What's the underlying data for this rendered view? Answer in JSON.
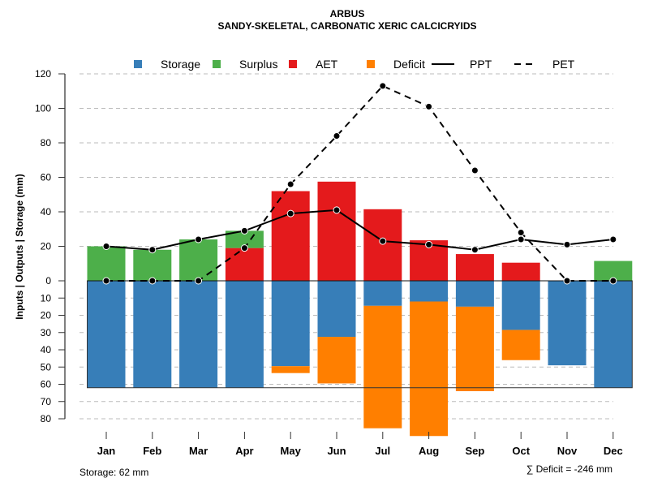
{
  "chart_data": {
    "type": "bar",
    "title": "ARBUS",
    "subtitle": "SANDY-SKELETAL, CARBONATIC XERIC CALCICRYIDS",
    "ylabel": "Inputs | Outputs | Storage    (mm)",
    "categories": [
      "Jan",
      "Feb",
      "Mar",
      "Apr",
      "May",
      "Jun",
      "Jul",
      "Aug",
      "Sep",
      "Oct",
      "Nov",
      "Dec"
    ],
    "ylim_top": [
      0,
      120
    ],
    "ylim_bottom": [
      0,
      80
    ],
    "yticks_top": [
      "0",
      "20",
      "40",
      "60",
      "80",
      "100",
      "120"
    ],
    "yticks_bottom": [
      "10",
      "20",
      "30",
      "40",
      "50",
      "60",
      "70",
      "80"
    ],
    "grid": true,
    "legend_position": "top",
    "legend": [
      {
        "label": "Storage",
        "kind": "box",
        "color": "#377EB8"
      },
      {
        "label": "Surplus",
        "kind": "box",
        "color": "#4DAF4A"
      },
      {
        "label": "AET",
        "kind": "box",
        "color": "#E41A1C"
      },
      {
        "label": "Deficit",
        "kind": "box",
        "color": "#FF7F00"
      },
      {
        "label": "PPT",
        "kind": "solid"
      },
      {
        "label": "PET",
        "kind": "dashed"
      }
    ],
    "series": [
      {
        "name": "AET",
        "position": "above",
        "values": [
          0,
          0,
          0,
          19,
          52,
          57.5,
          41.5,
          23.5,
          15.5,
          10.5,
          0,
          0
        ]
      },
      {
        "name": "Surplus",
        "position": "above",
        "values": [
          20,
          18,
          24,
          10,
          0,
          0,
          0,
          0,
          0,
          0,
          0,
          11.5
        ]
      },
      {
        "name": "Storage",
        "position": "below",
        "values": [
          62,
          62,
          62,
          62,
          49.5,
          32.5,
          14.5,
          12,
          15,
          28.5,
          49,
          62
        ]
      },
      {
        "name": "Deficit",
        "position": "below",
        "values": [
          0,
          0,
          0,
          0,
          4,
          27,
          71,
          78,
          49,
          17.5,
          0,
          0
        ]
      },
      {
        "name": "PPT",
        "type": "line",
        "values": [
          20,
          18,
          24,
          29,
          39,
          41,
          23,
          21,
          18,
          24,
          21,
          24
        ]
      },
      {
        "name": "PET",
        "type": "line",
        "values": [
          0,
          0,
          0,
          19,
          56,
          84,
          113,
          101,
          64,
          28,
          0,
          0
        ]
      }
    ],
    "storage_capacity": 62,
    "footer_left": "Storage: 62 mm",
    "footer_right": "∑ Deficit = -246 mm"
  }
}
